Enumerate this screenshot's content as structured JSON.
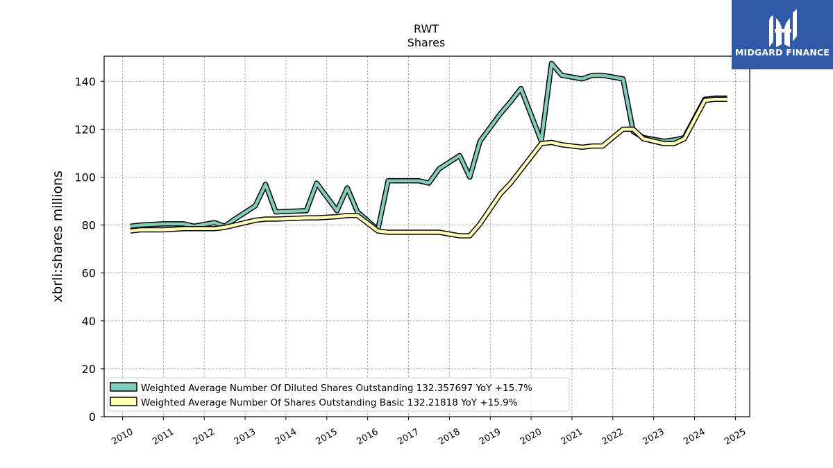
{
  "chart_data": {
    "type": "line",
    "title": "RWT",
    "subtitle": "Shares",
    "ylabel": "xbrli:shares millions",
    "xlabel": "",
    "xlim": [
      2009.55,
      2025.35
    ],
    "ylim": [
      0,
      150.5
    ],
    "yticks": [
      0,
      20,
      40,
      60,
      80,
      100,
      120,
      140
    ],
    "xticks": [
      "2010",
      "2011",
      "2012",
      "2013",
      "2014",
      "2015",
      "2016",
      "2017",
      "2018",
      "2019",
      "2020",
      "2021",
      "2022",
      "2023",
      "2024",
      "2025"
    ],
    "grid": true,
    "legend_position": "lower-left",
    "series": [
      {
        "name": "Weighted Average Number Of Diluted Shares Outstanding  132.357697 YoY +15.7%",
        "color": "#7fcdbb",
        "x": [
          2010.19,
          2010.44,
          2011.0,
          2011.5,
          2011.75,
          2012.25,
          2012.5,
          2012.75,
          2013.25,
          2013.5,
          2013.75,
          2014.5,
          2014.75,
          2015.25,
          2015.5,
          2015.75,
          2016.25,
          2016.5,
          2017.25,
          2017.5,
          2017.75,
          2018.25,
          2018.5,
          2018.75,
          2019.25,
          2019.5,
          2019.75,
          2020.25,
          2020.5,
          2020.75,
          2021.25,
          2021.5,
          2021.75,
          2022.25,
          2022.5,
          2022.75,
          2023.25,
          2023.5,
          2023.75,
          2024.25,
          2024.5,
          2024.8
        ],
        "values": [
          79.5,
          80,
          80.5,
          80.5,
          79.5,
          81,
          79.5,
          82.5,
          88,
          97,
          85.5,
          86,
          97.5,
          86,
          95.5,
          85.5,
          78,
          98.5,
          98.5,
          97.5,
          103.5,
          109,
          100,
          115,
          126.5,
          131.5,
          137,
          115,
          147.5,
          142.5,
          141,
          142.5,
          142.5,
          141,
          119,
          116.5,
          115,
          115.5,
          116.5,
          132.5,
          133,
          133
        ]
      },
      {
        "name": "Weighted Average Number Of Shares Outstanding Basic  132.21818 YoY +15.9%",
        "color": "#ffffb3",
        "x": [
          2010.19,
          2010.44,
          2011.0,
          2011.5,
          2011.75,
          2012.25,
          2012.5,
          2012.75,
          2013.25,
          2013.5,
          2013.75,
          2014.5,
          2014.75,
          2015.25,
          2015.5,
          2015.75,
          2016.25,
          2016.5,
          2017.25,
          2017.5,
          2017.75,
          2018.25,
          2018.5,
          2018.75,
          2019.25,
          2019.5,
          2019.75,
          2020.25,
          2020.5,
          2020.75,
          2021.25,
          2021.5,
          2021.75,
          2022.25,
          2022.5,
          2022.75,
          2023.25,
          2023.5,
          2023.75,
          2024.25,
          2024.5,
          2024.8
        ],
        "values": [
          77.5,
          78,
          78,
          78.5,
          78.5,
          78.5,
          79,
          80,
          82,
          82.5,
          82.5,
          83,
          83,
          83.5,
          84,
          84,
          77.5,
          77,
          77,
          77,
          77,
          75.5,
          75.5,
          80.5,
          93,
          97.5,
          103,
          114,
          114.5,
          113.5,
          112.5,
          113,
          113,
          120,
          120,
          116,
          114,
          114,
          116,
          132,
          132.5,
          132.5
        ]
      }
    ]
  },
  "logo": {
    "text": "MIDGARD FINANCE",
    "icon": "midgard-logo-icon"
  }
}
